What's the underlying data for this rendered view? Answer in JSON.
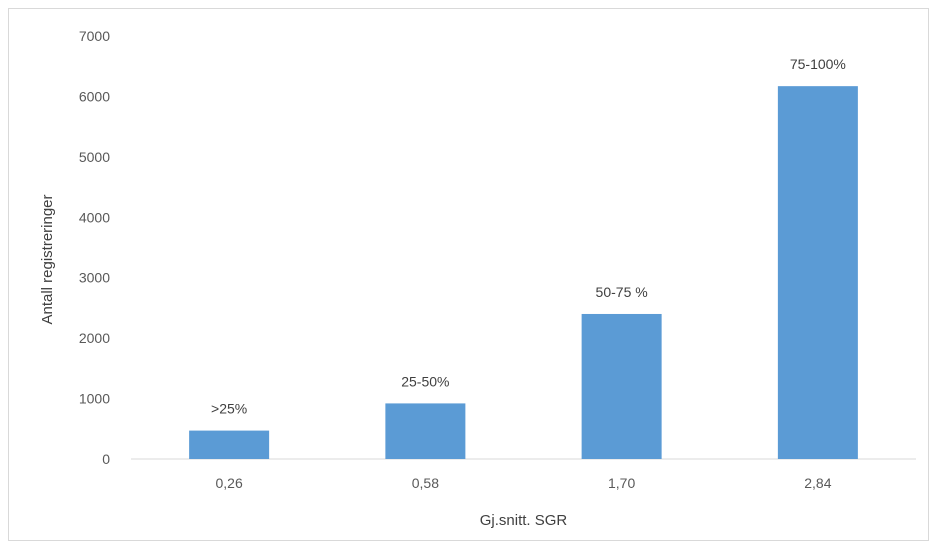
{
  "chart_data": {
    "type": "bar",
    "title": "",
    "xlabel": "Gj.snitt. SGR",
    "ylabel": "Antall registreringer",
    "categories": [
      "0,26",
      "0,58",
      "1,70",
      "2,84"
    ],
    "values": [
      470,
      920,
      2400,
      6170
    ],
    "data_labels": [
      ">25%",
      "25-50%",
      "50-75 %",
      "75-100%"
    ],
    "ylim": [
      0,
      7000
    ],
    "yticks": [
      0,
      1000,
      2000,
      3000,
      4000,
      5000,
      6000,
      7000
    ],
    "grid": false,
    "legend": "none",
    "bar_color": "#5b9bd5"
  }
}
